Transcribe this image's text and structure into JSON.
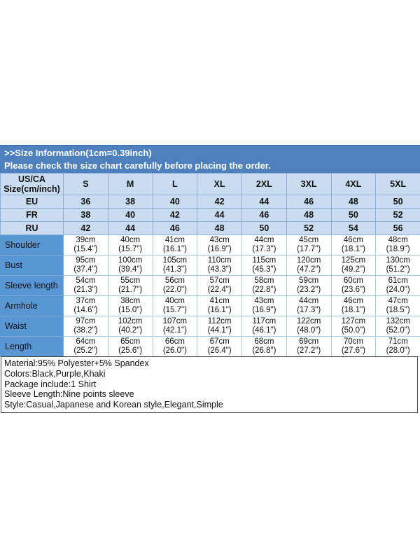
{
  "header_band": {
    "line1": ">>Size Information(1cm=0.39inch)",
    "line2": "Please check the size chart carefully before placing the order."
  },
  "size_table": {
    "corner_label_line1": "US/CA",
    "corner_label_line2": "Size(cm/inch)",
    "sizes": [
      "S",
      "M",
      "L",
      "XL",
      "2XL",
      "3XL",
      "4XL",
      "5XL"
    ],
    "conversion_rows": [
      {
        "label": "EU",
        "values": [
          "36",
          "38",
          "40",
          "42",
          "44",
          "46",
          "48",
          "50"
        ]
      },
      {
        "label": "FR",
        "values": [
          "38",
          "40",
          "42",
          "44",
          "46",
          "48",
          "50",
          "52"
        ]
      },
      {
        "label": "RU",
        "values": [
          "42",
          "44",
          "46",
          "48",
          "50",
          "52",
          "54",
          "56"
        ]
      }
    ],
    "measurement_rows": [
      {
        "label": "Shoulder",
        "cm": [
          "39cm",
          "40cm",
          "41cm",
          "43cm",
          "44cm",
          "45cm",
          "46cm",
          "48cm"
        ],
        "inch": [
          "(15.4\")",
          "(15.7\")",
          "(16.1\")",
          "(16.9\")",
          "(17.3\")",
          "(17.7\")",
          "(18.1\")",
          "(18.9\")"
        ]
      },
      {
        "label": "Bust",
        "cm": [
          "95cm",
          "100cm",
          "105cm",
          "110cm",
          "115cm",
          "120cm",
          "125cm",
          "130cm"
        ],
        "inch": [
          "(37.4\")",
          "(39.4\")",
          "(41.3\")",
          "(43.3\")",
          "(45.3\")",
          "(47.2\")",
          "(49.2\")",
          "(51.2\")"
        ]
      },
      {
        "label": "Sleeve length",
        "cm": [
          "54cm",
          "55cm",
          "56cm",
          "57cm",
          "58cm",
          "59cm",
          "60cm",
          "61cm"
        ],
        "inch": [
          "(21.3\")",
          "(21.7\")",
          "(22.0\")",
          "(22.4\")",
          "(22.8\")",
          "(23.2\")",
          "(23.6\")",
          "(24.0\")"
        ]
      },
      {
        "label": "Armhole",
        "cm": [
          "37cm",
          "38cm",
          "40cm",
          "41cm",
          "43cm",
          "44cm",
          "46cm",
          "47cm"
        ],
        "inch": [
          "(14.6\")",
          "(15.0\")",
          "(15.7\")",
          "(16.1\")",
          "(16.9\")",
          "(17.3\")",
          "(18.1\")",
          "(18.5\")"
        ]
      },
      {
        "label": "Waist",
        "cm": [
          "97cm",
          "102cm",
          "107cm",
          "112cm",
          "117cm",
          "122cm",
          "127cm",
          "132cm"
        ],
        "inch": [
          "(38.2\")",
          "(40.2\")",
          "(42.1\")",
          "(44.1\")",
          "(46.1\")",
          "(48.0\")",
          "(50.0\")",
          "(52.0\")"
        ]
      },
      {
        "label": "Length",
        "cm": [
          "64cm",
          "65cm",
          "66cm",
          "67cm",
          "68cm",
          "69cm",
          "70cm",
          "71cm"
        ],
        "inch": [
          "(25.2\")",
          "(25.6\")",
          "(26.0\")",
          "(26.4\")",
          "(26.8\")",
          "(27.2\")",
          "(27.6\")",
          "(28.0\")"
        ]
      }
    ]
  },
  "details": {
    "lines": [
      "Material:95% Polyester+5% Spandex",
      "Colors:Black,Purple,Khaki",
      "Package include:1 Shirt",
      "Sleeve Length:Nine points sleeve",
      "Style:Casual,Japanese and Korean style,Elegant,Simple"
    ]
  },
  "colors": {
    "band_blue": "#4d80bd",
    "header_light_blue": "#c9dcf0",
    "row_label_blue": "#5996d4",
    "grid_blue": "#a9c9e8",
    "details_border": "#4a4a4a"
  }
}
